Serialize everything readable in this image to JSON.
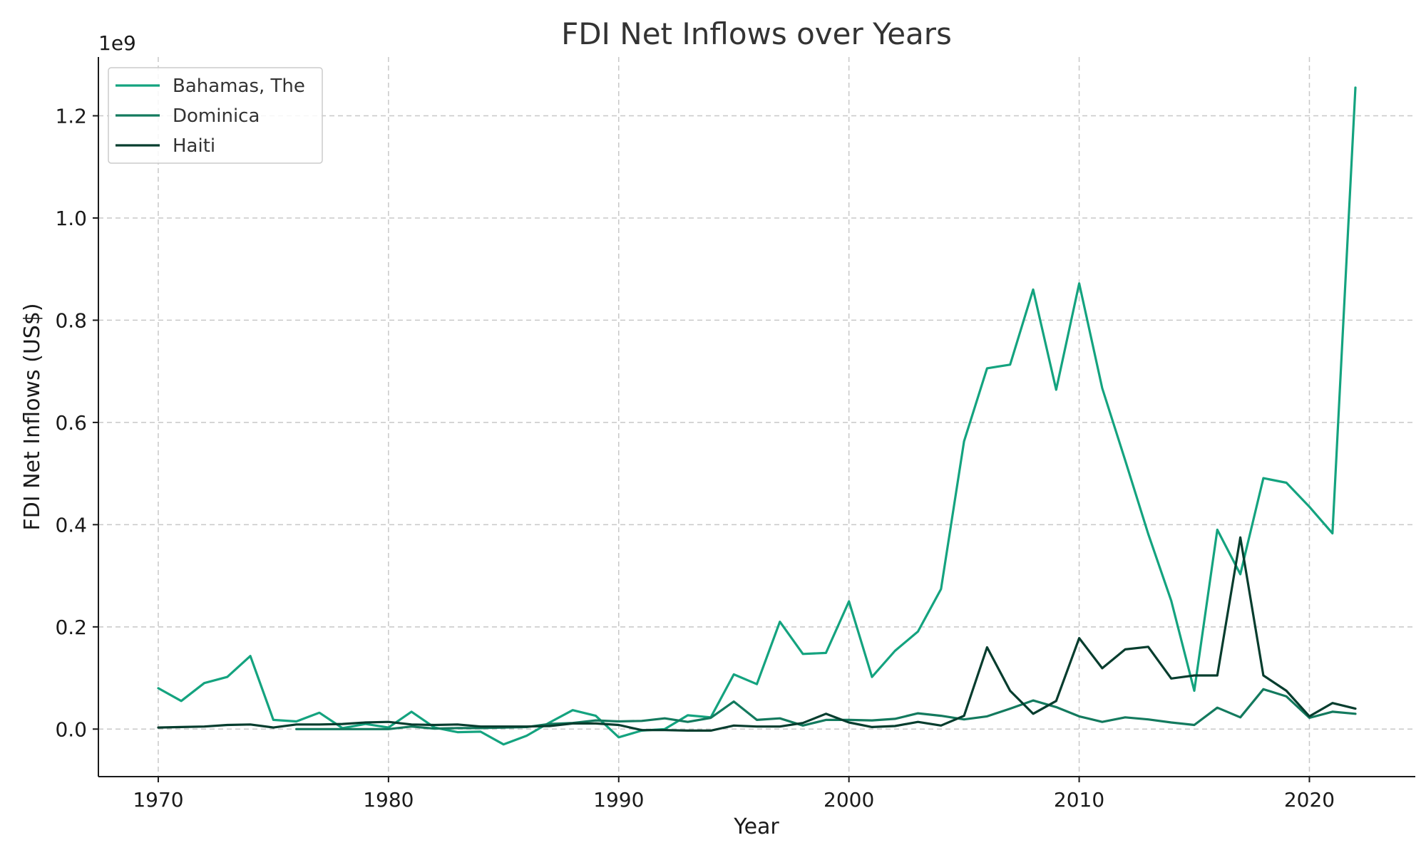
{
  "chart_data": {
    "type": "line",
    "title": "FDI Net Inflows over Years",
    "xlabel": "Year",
    "ylabel": "FDI Net Inflows (US$)",
    "y_offset_label": "1e9",
    "xlim": [
      1967.4,
      2024.6
    ],
    "ylim": [
      -0.093,
      1.315
    ],
    "x_ticks": [
      1970,
      1980,
      1990,
      2000,
      2010,
      2020
    ],
    "y_ticks": [
      0.0,
      0.2,
      0.4,
      0.6,
      0.8,
      1.0,
      1.2
    ],
    "y_tick_labels": [
      "0.0",
      "0.2",
      "0.4",
      "0.6",
      "0.8",
      "1.0",
      "1.2"
    ],
    "grid": true,
    "legend_position": "top-left",
    "series": [
      {
        "name": "Bahamas, The",
        "color": "#14a37f",
        "x": [
          1970,
          1971,
          1972,
          1973,
          1974,
          1975,
          1976,
          1977,
          1978,
          1979,
          1980,
          1981,
          1982,
          1983,
          1984,
          1985,
          1986,
          1987,
          1988,
          1989,
          1990,
          1991,
          1992,
          1993,
          1994,
          1995,
          1996,
          1997,
          1998,
          1999,
          2000,
          2001,
          2002,
          2003,
          2004,
          2005,
          2006,
          2007,
          2008,
          2009,
          2010,
          2011,
          2012,
          2013,
          2014,
          2015,
          2016,
          2017,
          2018,
          2019,
          2020,
          2021,
          2022
        ],
        "values": [
          0.08,
          0.055,
          0.09,
          0.102,
          0.143,
          0.018,
          0.015,
          0.032,
          0.002,
          0.01,
          0.003,
          0.034,
          0.003,
          -0.006,
          -0.005,
          -0.03,
          -0.013,
          0.013,
          0.037,
          0.026,
          -0.016,
          -0.003,
          0.0,
          0.027,
          0.023,
          0.107,
          0.088,
          0.21,
          0.147,
          0.149,
          0.25,
          0.102,
          0.153,
          0.191,
          0.274,
          0.563,
          0.706,
          0.713,
          0.86,
          0.664,
          0.872,
          0.667,
          0.526,
          0.382,
          0.251,
          0.075,
          0.39,
          0.303,
          0.491,
          0.482,
          0.435,
          0.383,
          1.255
        ]
      },
      {
        "name": "Dominica",
        "color": "#137a5e",
        "x": [
          1976,
          1977,
          1978,
          1979,
          1980,
          1981,
          1982,
          1983,
          1984,
          1985,
          1986,
          1987,
          1988,
          1989,
          1990,
          1991,
          1992,
          1993,
          1994,
          1995,
          1996,
          1997,
          1998,
          1999,
          2000,
          2001,
          2002,
          2003,
          2004,
          2005,
          2006,
          2007,
          2008,
          2009,
          2010,
          2011,
          2012,
          2013,
          2014,
          2015,
          2016,
          2017,
          2018,
          2019,
          2020,
          2021,
          2022
        ],
        "values": [
          0.0,
          0.0,
          0.0,
          0.0,
          0.0,
          0.005,
          0.001,
          0.002,
          0.002,
          0.003,
          0.004,
          0.01,
          0.012,
          0.017,
          0.015,
          0.016,
          0.021,
          0.014,
          0.022,
          0.054,
          0.018,
          0.021,
          0.007,
          0.018,
          0.018,
          0.017,
          0.02,
          0.031,
          0.026,
          0.019,
          0.025,
          0.04,
          0.056,
          0.043,
          0.025,
          0.014,
          0.023,
          0.019,
          0.013,
          0.008,
          0.042,
          0.023,
          0.078,
          0.064,
          0.022,
          0.034,
          0.03
        ]
      },
      {
        "name": "Haiti",
        "color": "#063d2e",
        "x": [
          1970,
          1971,
          1972,
          1973,
          1974,
          1975,
          1976,
          1977,
          1978,
          1979,
          1980,
          1981,
          1982,
          1983,
          1984,
          1985,
          1986,
          1987,
          1988,
          1989,
          1990,
          1991,
          1992,
          1993,
          1994,
          1995,
          1996,
          1997,
          1998,
          1999,
          2000,
          2001,
          2002,
          2003,
          2004,
          2005,
          2006,
          2007,
          2008,
          2009,
          2010,
          2011,
          2012,
          2013,
          2014,
          2015,
          2016,
          2017,
          2018,
          2019,
          2020,
          2021,
          2022
        ],
        "values": [
          0.003,
          0.004,
          0.005,
          0.008,
          0.009,
          0.003,
          0.009,
          0.009,
          0.01,
          0.013,
          0.014,
          0.009,
          0.008,
          0.009,
          0.005,
          0.005,
          0.005,
          0.006,
          0.011,
          0.011,
          0.008,
          -0.002,
          -0.002,
          -0.003,
          -0.003,
          0.007,
          0.005,
          0.005,
          0.012,
          0.03,
          0.013,
          0.004,
          0.006,
          0.014,
          0.007,
          0.026,
          0.16,
          0.075,
          0.03,
          0.055,
          0.178,
          0.119,
          0.156,
          0.161,
          0.099,
          0.105,
          0.105,
          0.375,
          0.105,
          0.075,
          0.025,
          0.051,
          0.04
        ]
      }
    ]
  }
}
